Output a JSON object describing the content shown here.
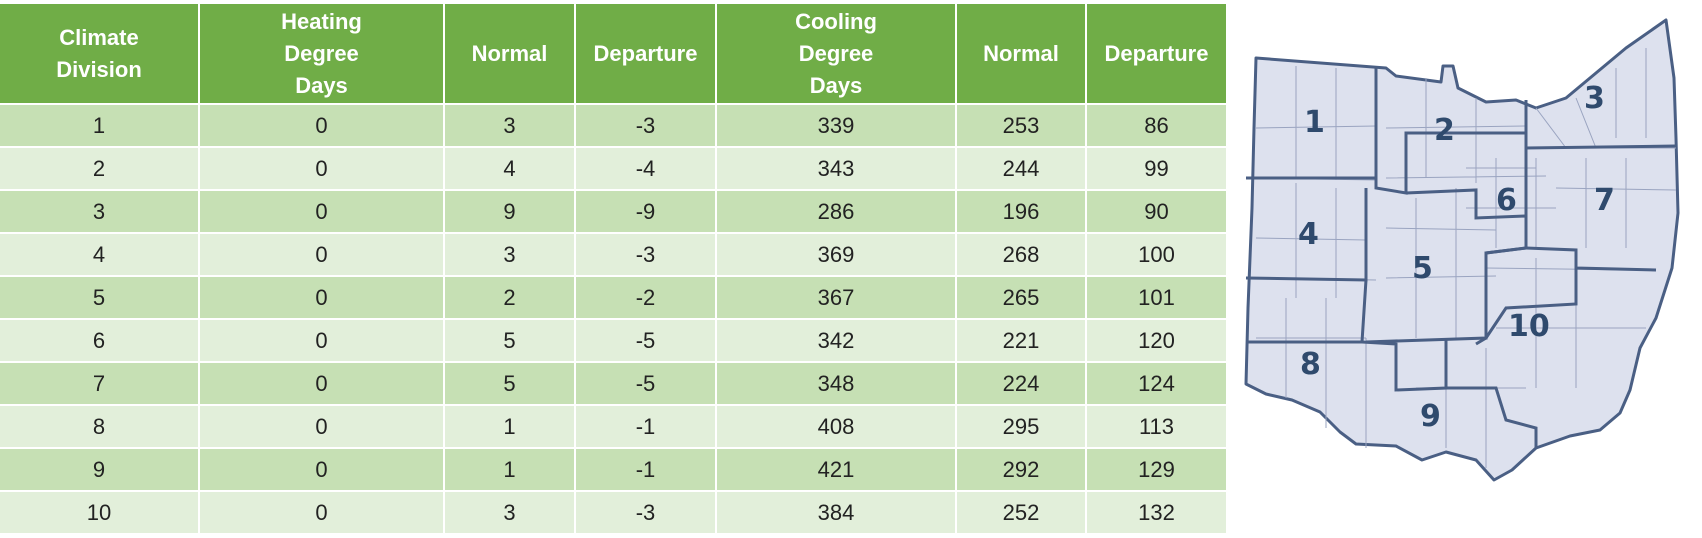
{
  "table": {
    "headers": [
      [
        "Climate",
        "Division"
      ],
      [
        "Heating",
        "Degree",
        "Days"
      ],
      [
        "Normal"
      ],
      [
        "Departure"
      ],
      [
        "Cooling",
        "Degree",
        "Days"
      ],
      [
        "Normal"
      ],
      [
        "Departure"
      ]
    ],
    "rows": [
      [
        "1",
        "0",
        "3",
        "-3",
        "339",
        "253",
        "86"
      ],
      [
        "2",
        "0",
        "4",
        "-4",
        "343",
        "244",
        "99"
      ],
      [
        "3",
        "0",
        "9",
        "-9",
        "286",
        "196",
        "90"
      ],
      [
        "4",
        "0",
        "3",
        "-3",
        "369",
        "268",
        "100"
      ],
      [
        "5",
        "0",
        "2",
        "-2",
        "367",
        "265",
        "101"
      ],
      [
        "6",
        "0",
        "5",
        "-5",
        "342",
        "221",
        "120"
      ],
      [
        "7",
        "0",
        "5",
        "-5",
        "348",
        "224",
        "124"
      ],
      [
        "8",
        "0",
        "1",
        "-1",
        "408",
        "295",
        "113"
      ],
      [
        "9",
        "0",
        "1",
        "-1",
        "421",
        "292",
        "129"
      ],
      [
        "10",
        "0",
        "3",
        "-3",
        "384",
        "252",
        "132"
      ]
    ]
  },
  "map": {
    "division_labels": [
      "1",
      "2",
      "3",
      "4",
      "5",
      "6",
      "7",
      "8",
      "9",
      "10"
    ]
  },
  "colors": {
    "header_bg": "#70ad47",
    "row_odd": "#c6e0b4",
    "row_even": "#e2efda",
    "map_fill": "#dde1ee",
    "map_border": "#4a5f84",
    "label": "#2f4a6d"
  }
}
